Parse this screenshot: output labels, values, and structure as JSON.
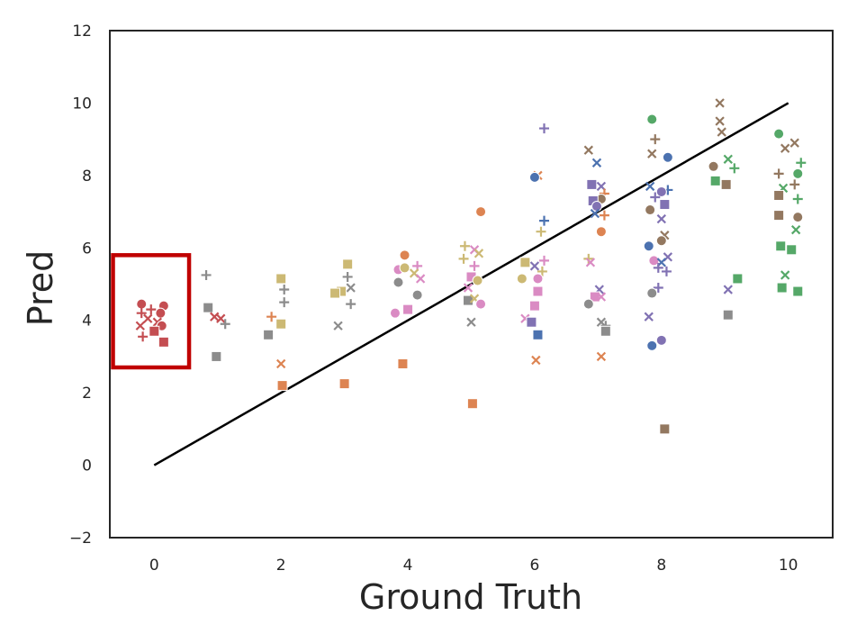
{
  "chart_data": {
    "type": "scatter",
    "xlabel": "Ground Truth",
    "ylabel": "Pred",
    "xlim": [
      -0.7,
      10.7
    ],
    "ylim": [
      -2,
      12
    ],
    "xticks": [
      "0",
      "2",
      "4",
      "6",
      "8",
      "10"
    ],
    "yticks": [
      "−2",
      "0",
      "2",
      "4",
      "6",
      "8",
      "10",
      "12"
    ],
    "grid": false,
    "identity_line": {
      "x": [
        0,
        10
      ],
      "y": [
        0,
        10
      ],
      "color": "#000000"
    },
    "highlight_box": {
      "x": [
        -0.65,
        0.55
      ],
      "y": [
        2.7,
        5.8
      ],
      "color": "#c00000"
    },
    "colors": {
      "blue": "#4c72b0",
      "orange": "#dd8452",
      "green": "#55a868",
      "red": "#c44e52",
      "purple": "#8172b3",
      "brown": "#937860",
      "pink": "#da8bc3",
      "gray": "#8c8c8c",
      "olive": "#ccb974"
    },
    "points": [
      {
        "x": -0.2,
        "y": 4.45,
        "m": "o",
        "c": "red"
      },
      {
        "x": 0.15,
        "y": 4.4,
        "m": "o",
        "c": "red"
      },
      {
        "x": -0.05,
        "y": 4.3,
        "m": "+",
        "c": "red"
      },
      {
        "x": -0.2,
        "y": 4.2,
        "m": "+",
        "c": "red"
      },
      {
        "x": 0.1,
        "y": 4.2,
        "m": "o",
        "c": "red"
      },
      {
        "x": -0.1,
        "y": 4.05,
        "m": "x",
        "c": "red"
      },
      {
        "x": 0.05,
        "y": 3.95,
        "m": "x",
        "c": "red"
      },
      {
        "x": -0.22,
        "y": 3.85,
        "m": "x",
        "c": "red"
      },
      {
        "x": 0.12,
        "y": 3.85,
        "m": "o",
        "c": "red"
      },
      {
        "x": 0.0,
        "y": 3.7,
        "m": "s",
        "c": "red"
      },
      {
        "x": -0.18,
        "y": 3.55,
        "m": "+",
        "c": "red"
      },
      {
        "x": 0.15,
        "y": 3.4,
        "m": "s",
        "c": "red"
      },
      {
        "x": 0.82,
        "y": 5.25,
        "m": "+",
        "c": "gray"
      },
      {
        "x": 0.85,
        "y": 4.35,
        "m": "s",
        "c": "gray"
      },
      {
        "x": 0.95,
        "y": 4.1,
        "m": "x",
        "c": "red"
      },
      {
        "x": 1.05,
        "y": 4.05,
        "m": "x",
        "c": "red"
      },
      {
        "x": 1.12,
        "y": 3.9,
        "m": "+",
        "c": "gray"
      },
      {
        "x": 0.98,
        "y": 3.0,
        "m": "s",
        "c": "gray"
      },
      {
        "x": 2.0,
        "y": 5.15,
        "m": "s",
        "c": "olive"
      },
      {
        "x": 2.05,
        "y": 4.85,
        "m": "+",
        "c": "gray"
      },
      {
        "x": 2.05,
        "y": 4.5,
        "m": "+",
        "c": "gray"
      },
      {
        "x": 1.85,
        "y": 4.1,
        "m": "+",
        "c": "orange"
      },
      {
        "x": 2.0,
        "y": 3.9,
        "m": "s",
        "c": "olive"
      },
      {
        "x": 1.8,
        "y": 3.6,
        "m": "s",
        "c": "gray"
      },
      {
        "x": 2.0,
        "y": 2.8,
        "m": "x",
        "c": "orange"
      },
      {
        "x": 2.02,
        "y": 2.2,
        "m": "s",
        "c": "orange"
      },
      {
        "x": 3.05,
        "y": 5.55,
        "m": "s",
        "c": "olive"
      },
      {
        "x": 3.05,
        "y": 5.2,
        "m": "+",
        "c": "gray"
      },
      {
        "x": 3.1,
        "y": 4.9,
        "m": "x",
        "c": "gray"
      },
      {
        "x": 2.95,
        "y": 4.8,
        "m": "s",
        "c": "olive"
      },
      {
        "x": 2.85,
        "y": 4.75,
        "m": "s",
        "c": "olive"
      },
      {
        "x": 3.1,
        "y": 4.45,
        "m": "+",
        "c": "gray"
      },
      {
        "x": 2.9,
        "y": 3.85,
        "m": "x",
        "c": "gray"
      },
      {
        "x": 3.0,
        "y": 2.25,
        "m": "s",
        "c": "orange"
      },
      {
        "x": 3.95,
        "y": 5.8,
        "m": "o",
        "c": "orange"
      },
      {
        "x": 4.15,
        "y": 5.5,
        "m": "+",
        "c": "pink"
      },
      {
        "x": 3.85,
        "y": 5.4,
        "m": "o",
        "c": "pink"
      },
      {
        "x": 3.95,
        "y": 5.45,
        "m": "o",
        "c": "olive"
      },
      {
        "x": 4.1,
        "y": 5.3,
        "m": "x",
        "c": "olive"
      },
      {
        "x": 4.2,
        "y": 5.15,
        "m": "x",
        "c": "pink"
      },
      {
        "x": 3.85,
        "y": 5.05,
        "m": "o",
        "c": "gray"
      },
      {
        "x": 4.15,
        "y": 4.7,
        "m": "o",
        "c": "gray"
      },
      {
        "x": 4.0,
        "y": 4.3,
        "m": "s",
        "c": "pink"
      },
      {
        "x": 3.8,
        "y": 4.2,
        "m": "o",
        "c": "pink"
      },
      {
        "x": 3.92,
        "y": 2.8,
        "m": "s",
        "c": "orange"
      },
      {
        "x": 5.15,
        "y": 7.0,
        "m": "o",
        "c": "orange"
      },
      {
        "x": 4.9,
        "y": 6.05,
        "m": "+",
        "c": "olive"
      },
      {
        "x": 5.05,
        "y": 5.95,
        "m": "x",
        "c": "pink"
      },
      {
        "x": 5.12,
        "y": 5.85,
        "m": "x",
        "c": "olive"
      },
      {
        "x": 4.88,
        "y": 5.7,
        "m": "+",
        "c": "olive"
      },
      {
        "x": 5.05,
        "y": 5.5,
        "m": "+",
        "c": "pink"
      },
      {
        "x": 5.0,
        "y": 5.2,
        "m": "s",
        "c": "pink"
      },
      {
        "x": 5.1,
        "y": 5.1,
        "m": "o",
        "c": "olive"
      },
      {
        "x": 4.95,
        "y": 4.9,
        "m": "x",
        "c": "pink"
      },
      {
        "x": 4.95,
        "y": 4.55,
        "m": "s",
        "c": "gray"
      },
      {
        "x": 5.05,
        "y": 4.6,
        "m": "x",
        "c": "olive"
      },
      {
        "x": 5.15,
        "y": 4.45,
        "m": "o",
        "c": "pink"
      },
      {
        "x": 5.0,
        "y": 3.95,
        "m": "x",
        "c": "gray"
      },
      {
        "x": 5.02,
        "y": 1.7,
        "m": "s",
        "c": "orange"
      },
      {
        "x": 6.15,
        "y": 9.3,
        "m": "+",
        "c": "purple"
      },
      {
        "x": 6.05,
        "y": 8.0,
        "m": "x",
        "c": "orange"
      },
      {
        "x": 6.0,
        "y": 7.95,
        "m": "o",
        "c": "blue"
      },
      {
        "x": 6.15,
        "y": 6.75,
        "m": "+",
        "c": "blue"
      },
      {
        "x": 6.1,
        "y": 6.45,
        "m": "+",
        "c": "olive"
      },
      {
        "x": 5.85,
        "y": 5.6,
        "m": "s",
        "c": "olive"
      },
      {
        "x": 6.15,
        "y": 5.65,
        "m": "+",
        "c": "pink"
      },
      {
        "x": 6.0,
        "y": 5.5,
        "m": "x",
        "c": "purple"
      },
      {
        "x": 6.12,
        "y": 5.35,
        "m": "+",
        "c": "olive"
      },
      {
        "x": 6.05,
        "y": 5.15,
        "m": "o",
        "c": "pink"
      },
      {
        "x": 5.8,
        "y": 5.15,
        "m": "o",
        "c": "olive"
      },
      {
        "x": 6.05,
        "y": 4.8,
        "m": "s",
        "c": "pink"
      },
      {
        "x": 6.0,
        "y": 4.4,
        "m": "s",
        "c": "pink"
      },
      {
        "x": 5.85,
        "y": 4.05,
        "m": "x",
        "c": "pink"
      },
      {
        "x": 5.95,
        "y": 3.95,
        "m": "s",
        "c": "purple"
      },
      {
        "x": 6.05,
        "y": 3.6,
        "m": "s",
        "c": "blue"
      },
      {
        "x": 6.02,
        "y": 2.9,
        "m": "x",
        "c": "orange"
      },
      {
        "x": 6.85,
        "y": 8.7,
        "m": "x",
        "c": "brown"
      },
      {
        "x": 6.98,
        "y": 8.35,
        "m": "x",
        "c": "blue"
      },
      {
        "x": 6.9,
        "y": 7.75,
        "m": "s",
        "c": "purple"
      },
      {
        "x": 7.05,
        "y": 7.7,
        "m": "x",
        "c": "purple"
      },
      {
        "x": 7.1,
        "y": 7.5,
        "m": "+",
        "c": "orange"
      },
      {
        "x": 7.05,
        "y": 7.35,
        "m": "o",
        "c": "brown"
      },
      {
        "x": 6.92,
        "y": 7.3,
        "m": "s",
        "c": "purple"
      },
      {
        "x": 6.98,
        "y": 7.15,
        "m": "o",
        "c": "purple"
      },
      {
        "x": 6.95,
        "y": 6.95,
        "m": "x",
        "c": "blue"
      },
      {
        "x": 7.1,
        "y": 6.9,
        "m": "+",
        "c": "orange"
      },
      {
        "x": 7.05,
        "y": 6.45,
        "m": "o",
        "c": "orange"
      },
      {
        "x": 6.85,
        "y": 5.7,
        "m": "+",
        "c": "olive"
      },
      {
        "x": 6.88,
        "y": 5.6,
        "m": "x",
        "c": "pink"
      },
      {
        "x": 7.02,
        "y": 4.85,
        "m": "x",
        "c": "purple"
      },
      {
        "x": 6.95,
        "y": 4.65,
        "m": "s",
        "c": "pink"
      },
      {
        "x": 7.05,
        "y": 4.65,
        "m": "x",
        "c": "pink"
      },
      {
        "x": 6.85,
        "y": 4.45,
        "m": "o",
        "c": "gray"
      },
      {
        "x": 7.05,
        "y": 3.95,
        "m": "x",
        "c": "gray"
      },
      {
        "x": 7.12,
        "y": 3.85,
        "m": "+",
        "c": "gray"
      },
      {
        "x": 7.12,
        "y": 3.7,
        "m": "s",
        "c": "gray"
      },
      {
        "x": 7.05,
        "y": 3.0,
        "m": "x",
        "c": "orange"
      },
      {
        "x": 7.85,
        "y": 9.55,
        "m": "o",
        "c": "green"
      },
      {
        "x": 7.9,
        "y": 9.0,
        "m": "+",
        "c": "brown"
      },
      {
        "x": 7.85,
        "y": 8.6,
        "m": "x",
        "c": "brown"
      },
      {
        "x": 8.1,
        "y": 8.5,
        "m": "o",
        "c": "blue"
      },
      {
        "x": 7.82,
        "y": 7.7,
        "m": "x",
        "c": "blue"
      },
      {
        "x": 8.1,
        "y": 7.6,
        "m": "+",
        "c": "blue"
      },
      {
        "x": 8.0,
        "y": 7.55,
        "m": "o",
        "c": "purple"
      },
      {
        "x": 7.9,
        "y": 7.4,
        "m": "+",
        "c": "purple"
      },
      {
        "x": 8.05,
        "y": 7.2,
        "m": "s",
        "c": "purple"
      },
      {
        "x": 7.82,
        "y": 7.05,
        "m": "o",
        "c": "brown"
      },
      {
        "x": 8.0,
        "y": 6.8,
        "m": "x",
        "c": "purple"
      },
      {
        "x": 8.05,
        "y": 6.35,
        "m": "x",
        "c": "brown"
      },
      {
        "x": 8.0,
        "y": 6.2,
        "m": "o",
        "c": "brown"
      },
      {
        "x": 7.8,
        "y": 6.05,
        "m": "o",
        "c": "blue"
      },
      {
        "x": 8.1,
        "y": 5.75,
        "m": "x",
        "c": "purple"
      },
      {
        "x": 7.88,
        "y": 5.65,
        "m": "o",
        "c": "pink"
      },
      {
        "x": 8.0,
        "y": 5.6,
        "m": "x",
        "c": "blue"
      },
      {
        "x": 7.95,
        "y": 5.45,
        "m": "+",
        "c": "purple"
      },
      {
        "x": 8.08,
        "y": 5.35,
        "m": "+",
        "c": "purple"
      },
      {
        "x": 7.95,
        "y": 4.9,
        "m": "+",
        "c": "purple"
      },
      {
        "x": 7.85,
        "y": 4.75,
        "m": "o",
        "c": "gray"
      },
      {
        "x": 7.8,
        "y": 4.1,
        "m": "x",
        "c": "purple"
      },
      {
        "x": 8.0,
        "y": 3.45,
        "m": "o",
        "c": "purple"
      },
      {
        "x": 7.85,
        "y": 3.3,
        "m": "o",
        "c": "blue"
      },
      {
        "x": 8.05,
        "y": 1.0,
        "m": "s",
        "c": "brown"
      },
      {
        "x": 8.92,
        "y": 10.0,
        "m": "x",
        "c": "brown"
      },
      {
        "x": 8.92,
        "y": 9.5,
        "m": "x",
        "c": "brown"
      },
      {
        "x": 8.95,
        "y": 9.2,
        "m": "x",
        "c": "brown"
      },
      {
        "x": 9.05,
        "y": 8.45,
        "m": "x",
        "c": "green"
      },
      {
        "x": 8.82,
        "y": 8.25,
        "m": "o",
        "c": "brown"
      },
      {
        "x": 9.15,
        "y": 8.2,
        "m": "+",
        "c": "green"
      },
      {
        "x": 8.85,
        "y": 7.85,
        "m": "s",
        "c": "green"
      },
      {
        "x": 9.02,
        "y": 7.75,
        "m": "s",
        "c": "brown"
      },
      {
        "x": 9.2,
        "y": 5.15,
        "m": "s",
        "c": "green"
      },
      {
        "x": 9.05,
        "y": 4.85,
        "m": "x",
        "c": "purple"
      },
      {
        "x": 9.05,
        "y": 4.15,
        "m": "s",
        "c": "gray"
      },
      {
        "x": 9.85,
        "y": 9.15,
        "m": "o",
        "c": "green"
      },
      {
        "x": 10.1,
        "y": 8.9,
        "m": "x",
        "c": "brown"
      },
      {
        "x": 9.95,
        "y": 8.75,
        "m": "x",
        "c": "brown"
      },
      {
        "x": 10.2,
        "y": 8.35,
        "m": "+",
        "c": "green"
      },
      {
        "x": 9.85,
        "y": 8.05,
        "m": "+",
        "c": "brown"
      },
      {
        "x": 10.15,
        "y": 8.05,
        "m": "o",
        "c": "green"
      },
      {
        "x": 10.1,
        "y": 7.75,
        "m": "+",
        "c": "brown"
      },
      {
        "x": 9.92,
        "y": 7.65,
        "m": "x",
        "c": "green"
      },
      {
        "x": 9.85,
        "y": 7.45,
        "m": "s",
        "c": "brown"
      },
      {
        "x": 10.15,
        "y": 7.35,
        "m": "+",
        "c": "green"
      },
      {
        "x": 9.85,
        "y": 6.9,
        "m": "s",
        "c": "brown"
      },
      {
        "x": 10.15,
        "y": 6.85,
        "m": "o",
        "c": "brown"
      },
      {
        "x": 10.12,
        "y": 6.5,
        "m": "x",
        "c": "green"
      },
      {
        "x": 9.88,
        "y": 6.05,
        "m": "s",
        "c": "green"
      },
      {
        "x": 10.05,
        "y": 5.95,
        "m": "s",
        "c": "green"
      },
      {
        "x": 9.95,
        "y": 5.25,
        "m": "x",
        "c": "green"
      },
      {
        "x": 9.9,
        "y": 4.9,
        "m": "s",
        "c": "green"
      },
      {
        "x": 10.15,
        "y": 4.8,
        "m": "s",
        "c": "green"
      }
    ]
  }
}
